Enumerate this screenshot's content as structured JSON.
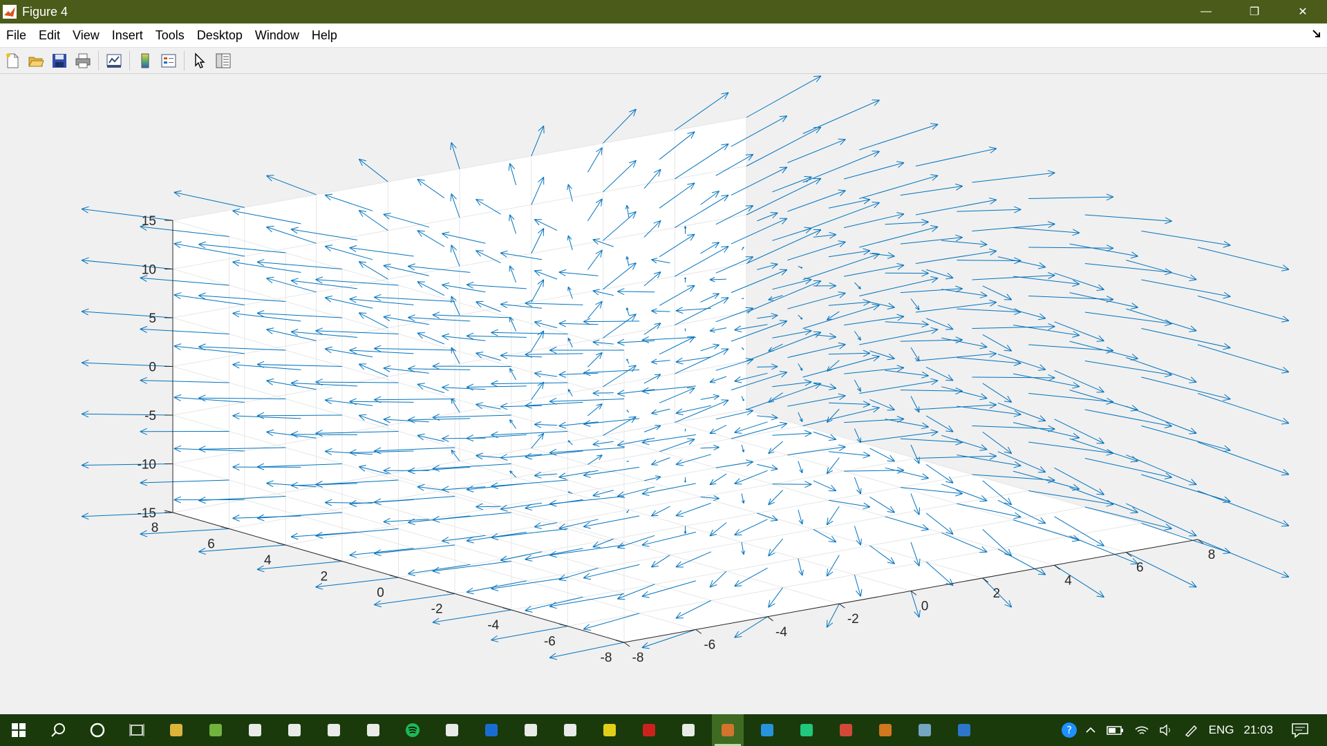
{
  "window": {
    "title": "Figure 4",
    "minimize_glyph": "—",
    "restore_glyph": "❐",
    "close_glyph": "✕"
  },
  "menu": [
    "File",
    "Edit",
    "View",
    "Insert",
    "Tools",
    "Desktop",
    "Window",
    "Help"
  ],
  "toolbar": [
    {
      "icon": "new-figure-icon"
    },
    {
      "icon": "open-file-icon"
    },
    {
      "icon": "save-icon"
    },
    {
      "icon": "print-icon"
    },
    {
      "sep": true
    },
    {
      "icon": "link-plot-icon"
    },
    {
      "sep": true
    },
    {
      "icon": "colorbar-icon"
    },
    {
      "icon": "legend-icon"
    },
    {
      "sep": true
    },
    {
      "icon": "edit-plot-arrow-icon"
    },
    {
      "icon": "property-inspector-icon"
    }
  ],
  "chart_data": {
    "type": "quiver3",
    "title": "",
    "xlabel": "",
    "ylabel": "",
    "zlabel": "",
    "xlim": [
      -8,
      8
    ],
    "ylim": [
      -8,
      8
    ],
    "zlim": [
      -15,
      15
    ],
    "x_ticks": [
      "-8",
      "-6",
      "-4",
      "-2",
      "0",
      "2",
      "4",
      "6",
      "8"
    ],
    "y_ticks": [
      "-8",
      "-6",
      "-4",
      "-2",
      "0",
      "2",
      "4",
      "6",
      "8"
    ],
    "z_ticks": [
      "-15",
      "-10",
      "-5",
      "0",
      "5",
      "10",
      "15"
    ],
    "grid": true,
    "series_color": "#0072bd",
    "grid_spacing_xy": 2,
    "grid_spacing_z": 5
  },
  "taskbar": {
    "apps": [
      "start-icon",
      "search-icon",
      "cortana-icon",
      "task-view-icon",
      "file-explorer-icon",
      "app-icon",
      "settings-icon",
      "store-icon",
      "media-icon",
      "chromium-icon",
      "spotify-icon",
      "clock-icon",
      "edge-icon",
      "matlab-n-icon",
      "calculator-icon",
      "sticky-notes-icon",
      "acrobat-icon",
      "document-icon",
      "matlab-icon",
      "vscode-icon",
      "pycharm-icon",
      "chrome-icon",
      "office-icon",
      "notes-icon",
      "shield-icon"
    ],
    "active_app": "matlab-icon",
    "clock": "21:03",
    "language": "ENG"
  }
}
